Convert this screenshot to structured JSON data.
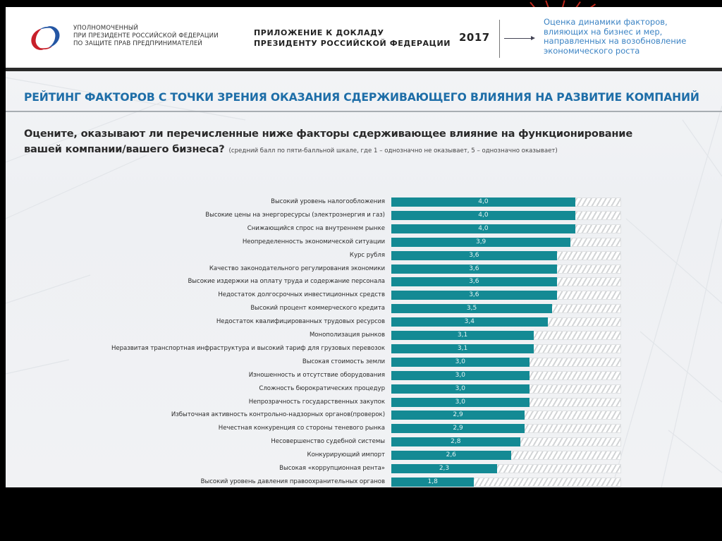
{
  "header": {
    "org_lines": [
      "Уполномоченный",
      "при Президенте Российской Федерации",
      "по защите прав предпринимателей"
    ],
    "report_title_lines": [
      "Приложение к докладу",
      "Президенту Российской Федерации"
    ],
    "year": "2017",
    "subtitle_lines": [
      "Оценка динамики факторов,",
      "влияющих на бизнес и мер,",
      "направленных на возобновление",
      "экономического роста"
    ],
    "logo_icon": "ombudsman-logo-icon",
    "arrow_icon": "arrow-right-icon"
  },
  "section_title": "Рейтинг факторов с точки зрения оказания сдерживающего влияния на развитие компаний",
  "question": {
    "line1": "Оцените, оказывают ли перечисленные ниже факторы сдерживающее влияние на функционирование",
    "line2": "вашей компании/вашего бизнеса?",
    "note": "(средний балл по пяти-балльной шкале, где 1 – однозначно не оказывает, 5 – однозначно оказывает)"
  },
  "colors": {
    "bar": "#148a94",
    "title": "#1e6ea8",
    "subtitle": "#3d84c4",
    "logo_red": "#c8202a",
    "logo_blue": "#2456a4"
  },
  "chart_data": {
    "type": "bar",
    "orientation": "horizontal",
    "title": "Рейтинг факторов с точки зрения оказания сдерживающего влияния на развитие компаний",
    "xlabel": "",
    "ylabel": "",
    "xlim": [
      0,
      5
    ],
    "grid": false,
    "legend": "none",
    "categories": [
      "Высокий уровень налогообложения",
      "Высокие цены на энергоресурсы (электроэнергия и газ)",
      "Снижающийся спрос на внутреннем рынке",
      "Неопределенность экономической ситуации",
      "Курс рубля",
      "Качество законодательного регулирования экономики",
      "Высокие издержки на оплату труда и содержание персонала",
      "Недостаток долгосрочных инвестиционных средств",
      "Высокий процент коммерческого кредита",
      "Недостаток квалифицированных трудовых ресурсов",
      "Монополизация рынков",
      "Неразвитая транспортная инфраструктура и высокий тариф для грузовых перевозок",
      "Высокая стоимость земли",
      "Изношенность и отсутствие оборудования",
      "Сложность бюрократических процедур",
      "Непрозрачность государственных закупок",
      "Избыточная активность контрольно-надзорных органов(проверок)",
      "Нечестная конкуренция со стороны теневого рынка",
      "Несовершенство судебной системы",
      "Конкурирующий импорт",
      "Высокая «коррупционная рента»",
      "Высокий уровень давления правоохранительных органов"
    ],
    "values": [
      4.0,
      4.0,
      4.0,
      3.9,
      3.6,
      3.6,
      3.6,
      3.6,
      3.5,
      3.4,
      3.1,
      3.1,
      3.0,
      3.0,
      3.0,
      3.0,
      2.9,
      2.9,
      2.8,
      2.6,
      2.3,
      1.8
    ],
    "value_labels": [
      "4,0",
      "4,0",
      "4,0",
      "3,9",
      "3,6",
      "3,6",
      "3,6",
      "3,6",
      "3,5",
      "3,4",
      "3,1",
      "3,1",
      "3,0",
      "3,0",
      "3,0",
      "3,0",
      "2,9",
      "2,9",
      "2,8",
      "2,6",
      "2,3",
      "1,8"
    ]
  }
}
